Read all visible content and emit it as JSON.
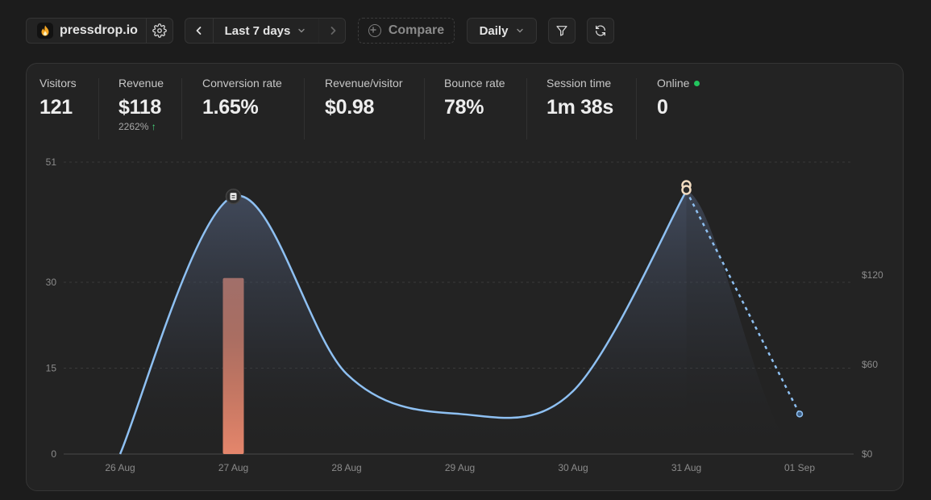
{
  "toolbar": {
    "site_name": "pressdrop.io",
    "range_label": "Last 7 days",
    "compare_label": "Compare",
    "interval_label": "Daily"
  },
  "icons": {
    "logo": "flame-icon",
    "settings": "gear-icon",
    "prev": "chevron-left-icon",
    "next": "chevron-right-icon",
    "dropdown": "chevron-down-icon",
    "compare": "plus-circle-icon",
    "filter": "filter-icon",
    "refresh": "refresh-icon"
  },
  "stats": [
    {
      "label": "Visitors",
      "value": "121"
    },
    {
      "label": "Revenue",
      "value": "$118",
      "change": "2262%"
    },
    {
      "label": "Conversion rate",
      "value": "1.65%"
    },
    {
      "label": "Revenue/visitor",
      "value": "$0.98"
    },
    {
      "label": "Bounce rate",
      "value": "78%"
    },
    {
      "label": "Session time",
      "value": "1m 38s"
    },
    {
      "label": "Online",
      "value": "0",
      "status_color": "#22c55e"
    }
  ],
  "chart_data": {
    "type": "line",
    "categories": [
      "26 Aug",
      "27 Aug",
      "28 Aug",
      "29 Aug",
      "30 Aug",
      "31 Aug",
      "01 Sep"
    ],
    "y_ticks": [
      "0",
      "15",
      "30",
      "51"
    ],
    "y2_ticks": [
      "$0",
      "$60",
      "$120"
    ],
    "ylim": [
      0,
      51
    ],
    "y2lim": [
      0,
      200
    ],
    "grid": true,
    "series": [
      {
        "type": "line",
        "axis": "left",
        "color": "#8ec0f2",
        "values": [
          0,
          45,
          14,
          7,
          11,
          46,
          7
        ],
        "dashed_last_segment": true
      },
      {
        "type": "bar",
        "axis": "right",
        "color": "#e5866c",
        "values": [
          0,
          118,
          0,
          0,
          0,
          0,
          0
        ]
      }
    ]
  }
}
